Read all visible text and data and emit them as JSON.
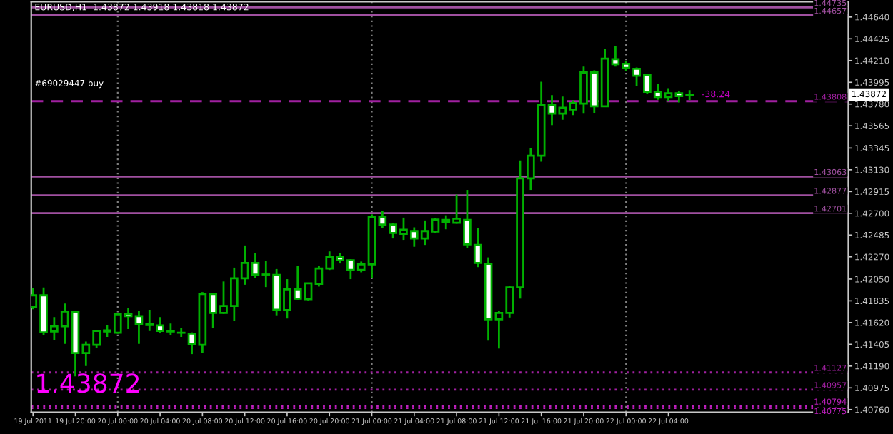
{
  "chart_data": {
    "type": "candlestick",
    "title": "EURUSD,H1  1.43872 1.43918 1.43818 1.43872",
    "color": "#00b000",
    "x": [
      "2011-07-19T16:00",
      "2011-07-19T17:00",
      "2011-07-19T18:00",
      "2011-07-19T19:00",
      "2011-07-19T20:00",
      "2011-07-19T21:00",
      "2011-07-19T22:00",
      "2011-07-19T23:00",
      "2011-07-20T00:00",
      "2011-07-20T01:00",
      "2011-07-20T02:00",
      "2011-07-20T03:00",
      "2011-07-20T04:00",
      "2011-07-20T05:00",
      "2011-07-20T06:00",
      "2011-07-20T07:00",
      "2011-07-20T08:00",
      "2011-07-20T09:00",
      "2011-07-20T10:00",
      "2011-07-20T11:00",
      "2011-07-20T12:00",
      "2011-07-20T13:00",
      "2011-07-20T14:00",
      "2011-07-20T15:00",
      "2011-07-20T16:00",
      "2011-07-20T17:00",
      "2011-07-20T18:00",
      "2011-07-20T19:00",
      "2011-07-20T20:00",
      "2011-07-20T21:00",
      "2011-07-20T22:00",
      "2011-07-20T23:00",
      "2011-07-21T00:00",
      "2011-07-21T01:00",
      "2011-07-21T02:00",
      "2011-07-21T03:00",
      "2011-07-21T04:00",
      "2011-07-21T05:00",
      "2011-07-21T06:00",
      "2011-07-21T07:00",
      "2011-07-21T08:00",
      "2011-07-21T09:00",
      "2011-07-21T10:00",
      "2011-07-21T11:00",
      "2011-07-21T12:00",
      "2011-07-21T13:00",
      "2011-07-21T14:00",
      "2011-07-21T15:00",
      "2011-07-21T16:00",
      "2011-07-21T17:00",
      "2011-07-21T18:00",
      "2011-07-21T19:00",
      "2011-07-21T20:00",
      "2011-07-21T21:00",
      "2011-07-21T22:00",
      "2011-07-21T23:00",
      "2011-07-22T00:00",
      "2011-07-22T01:00",
      "2011-07-22T02:00",
      "2011-07-22T03:00",
      "2011-07-22T04:00",
      "2011-07-22T05:00",
      "2011-07-22T06:00"
    ],
    "ohlc": [
      [
        1.41775,
        1.41957,
        1.41752,
        1.41889
      ],
      [
        1.41889,
        1.41967,
        1.415,
        1.41523
      ],
      [
        1.41532,
        1.41674,
        1.41446,
        1.41583
      ],
      [
        1.41583,
        1.41807,
        1.41409,
        1.41729
      ],
      [
        1.41724,
        1.41729,
        1.41089,
        1.41318
      ],
      [
        1.41318,
        1.41432,
        1.4119,
        1.414
      ],
      [
        1.414,
        1.41546,
        1.41372,
        1.41537
      ],
      [
        1.41532,
        1.41592,
        1.41478,
        1.41542
      ],
      [
        1.41519,
        1.41711,
        1.4151,
        1.41702
      ],
      [
        1.41706,
        1.41761,
        1.41555,
        1.41683
      ],
      [
        1.41683,
        1.41738,
        1.41409,
        1.41606
      ],
      [
        1.41606,
        1.41747,
        1.41537,
        1.41596
      ],
      [
        1.41592,
        1.41674,
        1.41519,
        1.41537
      ],
      [
        1.41532,
        1.4161,
        1.415,
        1.41532
      ],
      [
        1.41519,
        1.41569,
        1.41478,
        1.41519
      ],
      [
        1.4151,
        1.41523,
        1.41308,
        1.41409
      ],
      [
        1.414,
        1.41921,
        1.41318,
        1.41903
      ],
      [
        1.41903,
        1.41912,
        1.41569,
        1.41715
      ],
      [
        1.41715,
        1.42026,
        1.41706,
        1.41784
      ],
      [
        1.41784,
        1.42163,
        1.41638,
        1.42058
      ],
      [
        1.42058,
        1.42382,
        1.41994,
        1.42209
      ],
      [
        1.42209,
        1.42309,
        1.42058,
        1.42095
      ],
      [
        1.42095,
        1.42232,
        1.41971,
        1.42095
      ],
      [
        1.4209,
        1.42149,
        1.41692,
        1.41747
      ],
      [
        1.41743,
        1.42049,
        1.4166,
        1.41948
      ],
      [
        1.41948,
        1.42177,
        1.41848,
        1.41857
      ],
      [
        1.41852,
        1.42012,
        1.41839,
        1.42008
      ],
      [
        1.42003,
        1.42177,
        1.41976,
        1.42154
      ],
      [
        1.42154,
        1.42323,
        1.4214,
        1.42268
      ],
      [
        1.42268,
        1.42305,
        1.42204,
        1.42236
      ],
      [
        1.42236,
        1.42245,
        1.42049,
        1.4214
      ],
      [
        1.4214,
        1.42223,
        1.42117,
        1.42195
      ],
      [
        1.42195,
        1.42689,
        1.42058,
        1.42666
      ],
      [
        1.42661,
        1.42721,
        1.42552,
        1.42588
      ],
      [
        1.42588,
        1.42606,
        1.42451,
        1.42506
      ],
      [
        1.42497,
        1.42657,
        1.42437,
        1.42538
      ],
      [
        1.42524,
        1.42561,
        1.42369,
        1.42451
      ],
      [
        1.42451,
        1.42629,
        1.42387,
        1.42524
      ],
      [
        1.4252,
        1.42652,
        1.42506,
        1.42638
      ],
      [
        1.42634,
        1.4268,
        1.42542,
        1.42611
      ],
      [
        1.42606,
        1.42885,
        1.42597,
        1.42647
      ],
      [
        1.42634,
        1.42931,
        1.4236,
        1.42392
      ],
      [
        1.42387,
        1.42552,
        1.42168,
        1.42209
      ],
      [
        1.422,
        1.42264,
        1.41441,
        1.41651
      ],
      [
        1.41651,
        1.41738,
        1.41363,
        1.41715
      ],
      [
        1.41715,
        1.4198,
        1.4167,
        1.41967
      ],
      [
        1.41967,
        1.43223,
        1.41857,
        1.43045
      ],
      [
        1.43045,
        1.43342,
        1.42931,
        1.43269
      ],
      [
        1.43269,
        1.44,
        1.4321,
        1.43772
      ],
      [
        1.43772,
        1.43868,
        1.43571,
        1.43685
      ],
      [
        1.43685,
        1.43854,
        1.43625,
        1.43744
      ],
      [
        1.43726,
        1.43817,
        1.43671,
        1.4379
      ],
      [
        1.43785,
        1.44151,
        1.43685,
        1.44092
      ],
      [
        1.44092,
        1.44114,
        1.43694,
        1.43758
      ],
      [
        1.43758,
        1.44325,
        1.43749,
        1.44229
      ],
      [
        1.44224,
        1.44357,
        1.44151,
        1.44174
      ],
      [
        1.44178,
        1.44206,
        1.44105,
        1.44137
      ],
      [
        1.44128,
        1.44142,
        1.43959,
        1.4406
      ],
      [
        1.44064,
        1.44078,
        1.43877,
        1.439
      ],
      [
        1.439,
        1.43977,
        1.43822,
        1.43849
      ],
      [
        1.43849,
        1.43936,
        1.43804,
        1.43886
      ],
      [
        1.43886,
        1.43913,
        1.43795,
        1.43858
      ],
      [
        1.43872,
        1.43918,
        1.43818,
        1.43872
      ]
    ],
    "xlim": [
      "2011-07-19T15:50",
      "2011-07-22T21:00"
    ],
    "xticks": [
      {
        "value": "2011-07-19T16:00",
        "label": "19 Jul 2011"
      },
      {
        "value": "2011-07-19T20:00",
        "label": "19 Jul 20:00"
      },
      {
        "value": "2011-07-20T00:00",
        "label": "20 Jul 00:00"
      },
      {
        "value": "2011-07-20T04:00",
        "label": "20 Jul 04:00"
      },
      {
        "value": "2011-07-20T08:00",
        "label": "20 Jul 08:00"
      },
      {
        "value": "2011-07-20T12:00",
        "label": "20 Jul 12:00"
      },
      {
        "value": "2011-07-20T16:00",
        "label": "20 Jul 16:00"
      },
      {
        "value": "2011-07-20T20:00",
        "label": "20 Jul 20:00"
      },
      {
        "value": "2011-07-21T00:00",
        "label": "21 Jul 00:00"
      },
      {
        "value": "2011-07-21T04:00",
        "label": "21 Jul 04:00"
      },
      {
        "value": "2011-07-21T08:00",
        "label": "21 Jul 08:00"
      },
      {
        "value": "2011-07-21T12:00",
        "label": "21 Jul 12:00"
      },
      {
        "value": "2011-07-21T16:00",
        "label": "21 Jul 16:00"
      },
      {
        "value": "2011-07-21T20:00",
        "label": "21 Jul 20:00"
      },
      {
        "value": "2011-07-22T00:00",
        "label": "22 Jul 00:00"
      },
      {
        "value": "2011-07-22T04:00",
        "label": "22 Jul 04:00"
      }
    ],
    "ylim": [
      1.40733,
      1.44791
    ],
    "yticks": [
      {
        "value": 1.4464,
        "label": "1.44640"
      },
      {
        "value": 1.44425,
        "label": "1.44425"
      },
      {
        "value": 1.4421,
        "label": "1.44210"
      },
      {
        "value": 1.43995,
        "label": "1.43995"
      },
      {
        "value": 1.4378,
        "label": "1.43780"
      },
      {
        "value": 1.43565,
        "label": "1.43565"
      },
      {
        "value": 1.43345,
        "label": "1.43345"
      },
      {
        "value": 1.4313,
        "label": "1.43130"
      },
      {
        "value": 1.42915,
        "label": "1.42915"
      },
      {
        "value": 1.427,
        "label": "1.42700"
      },
      {
        "value": 1.42485,
        "label": "1.42485"
      },
      {
        "value": 1.4227,
        "label": "1.42270"
      },
      {
        "value": 1.4205,
        "label": "1.42050"
      },
      {
        "value": 1.41835,
        "label": "1.41835"
      },
      {
        "value": 1.4162,
        "label": "1.41620"
      },
      {
        "value": 1.41405,
        "label": "1.41405"
      },
      {
        "value": 1.4119,
        "label": "1.41190"
      },
      {
        "value": 1.40975,
        "label": "1.40975"
      },
      {
        "value": 1.4076,
        "label": "1.40760"
      }
    ],
    "grid": false,
    "ref_lines": [
      {
        "axis": "x",
        "value": "2011-07-20T00:00",
        "label": null,
        "color": "#808080",
        "line_style": "dotted"
      },
      {
        "axis": "x",
        "value": "2011-07-21T00:00",
        "label": null,
        "color": "#808080",
        "line_style": "dotted"
      },
      {
        "axis": "x",
        "value": "2011-07-22T00:00",
        "label": null,
        "color": "#808080",
        "line_style": "dotted"
      },
      {
        "axis": "y",
        "value": 1.44735,
        "label": "1.44735",
        "color": "#a050a0",
        "line_style": "solid"
      },
      {
        "axis": "y",
        "value": 1.44657,
        "label": "1.44657",
        "color": "#a050a0",
        "line_style": "solid"
      },
      {
        "axis": "y",
        "value": 1.43808,
        "label": "1.43808",
        "color": "#a020a0",
        "line_style": "dashed"
      },
      {
        "axis": "y",
        "value": 1.43063,
        "label": "1.43063",
        "color": "#a050a0",
        "line_style": "solid"
      },
      {
        "axis": "y",
        "value": 1.42877,
        "label": "1.42877",
        "color": "#a050a0",
        "line_style": "solid"
      },
      {
        "axis": "y",
        "value": 1.42701,
        "label": "1.42701",
        "color": "#a050a0",
        "line_style": "solid"
      },
      {
        "axis": "y",
        "value": 1.41127,
        "label": "1.41127",
        "color": "#a020a0",
        "line_style": "dotted"
      },
      {
        "axis": "y",
        "value": 1.40957,
        "label": "1.40957",
        "color": "#a020a0",
        "line_style": "dotted"
      },
      {
        "axis": "y",
        "value": 1.40794,
        "label": "1.40794",
        "color": "#c020c0",
        "line_style": "dotted"
      },
      {
        "axis": "y",
        "value": 1.40775,
        "label": "1.40775",
        "color": "#c020c0",
        "line_style": "dotted"
      }
    ],
    "annotations": [
      "#69029447 buy",
      "1.43872",
      {
        "text": "-38.24",
        "x": "2011-07-22T06:00",
        "y": 1.43872
      },
      "1.43872"
    ]
  }
}
